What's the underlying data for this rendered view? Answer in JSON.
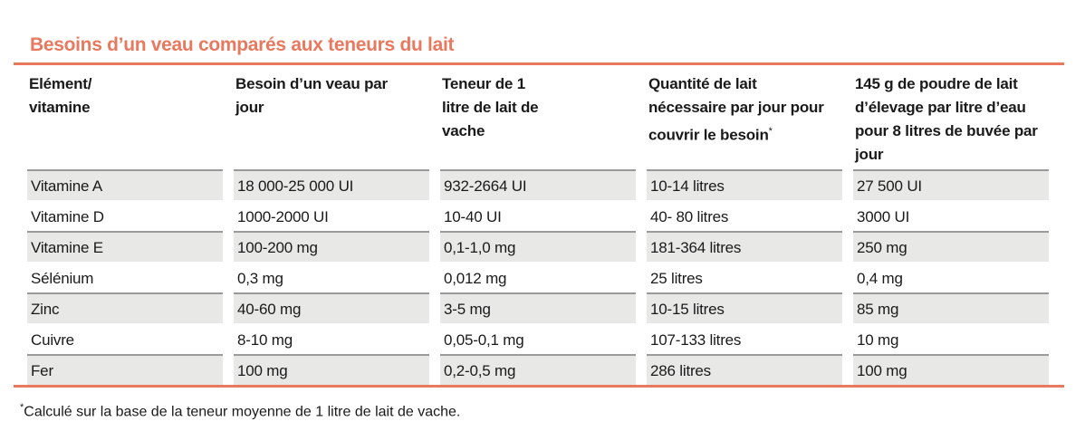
{
  "title": "Besoins d’un veau comparés aux teneurs du lait",
  "headers": [
    "Elément/ vitamine",
    "Besoin d’un veau par jour",
    "Teneur de 1 litre de lait de vache",
    "Quantité de lait nécessaire par jour pour couvrir le besoin",
    "145 g de poudre de lait d’élevage par litre d’eau pour 8 litres de buvée par jour"
  ],
  "header_note_mark": "*",
  "rows": [
    [
      "Vitamine A",
      "18 000-25 000 UI",
      "932-2664 UI",
      "10-14 litres",
      "27 500 UI"
    ],
    [
      "Vitamine D",
      "1000-2000 UI",
      "10-40 UI",
      "40- 80 litres",
      "3000 UI"
    ],
    [
      "Vitamine E",
      "100-200 mg",
      "0,1-1,0 mg",
      "181-364 litres",
      "250 mg"
    ],
    [
      "Sélénium",
      "0,3 mg",
      "0,012 mg",
      "25 litres",
      "0,4 mg"
    ],
    [
      "Zinc",
      "40-60 mg",
      "3-5 mg",
      "10-15 litres",
      "85 mg"
    ],
    [
      "Cuivre",
      "8-10 mg",
      "0,05-0,1 mg",
      "107-133 litres",
      "10 mg"
    ],
    [
      "Fer",
      "100 mg",
      "0,2-0,5 mg",
      "286 litres",
      "100 mg"
    ]
  ],
  "footnote_mark": "*",
  "footnote": "Calculé sur la base de la teneur moyenne de 1 litre de lait de vache.",
  "colors": {
    "accent": "#e8795f",
    "row_shade": "#e8e8e6"
  }
}
